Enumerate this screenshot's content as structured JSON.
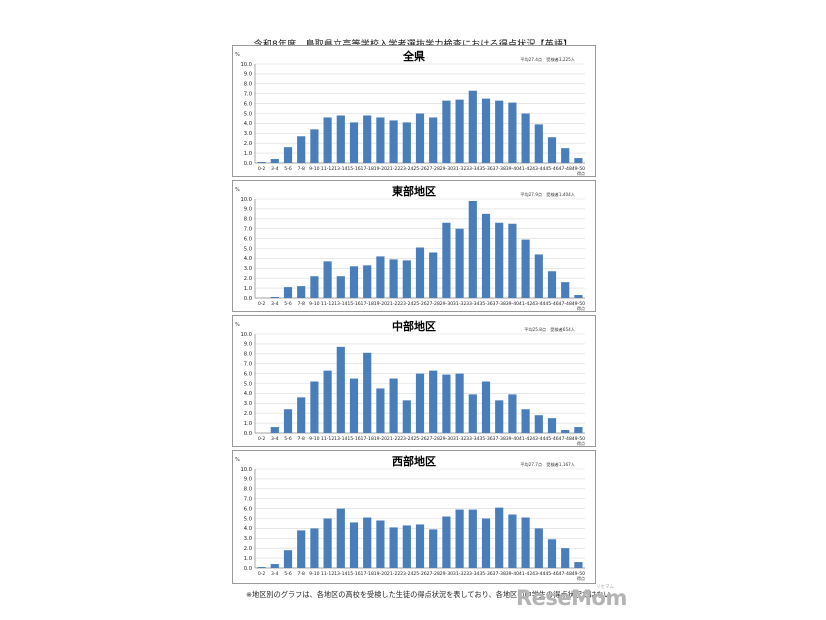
{
  "title": "令和8年度　鳥取県立高等学校入学者選抜学力検査における得点状況【英語】",
  "footnote": "※地区別のグラフは、各地区の高校を受検した生徒の得点状況を表しており、各地区の中学生の得点状況ではない",
  "logo": {
    "text": "ReseMom",
    "small": "リセマム"
  },
  "colors": {
    "bar": "#4a7ebb",
    "grid": "#d9d9d9",
    "axis": "#868686"
  },
  "chart_data": [
    {
      "type": "bar",
      "title": "全県",
      "ylabel": "%",
      "xlabel": "得点",
      "stats": "平均27.4点　受検者3,225人",
      "ylim": [
        0,
        10
      ],
      "yticks": [
        "0.0",
        "1.0",
        "2.0",
        "3.0",
        "4.0",
        "5.0",
        "6.0",
        "7.0",
        "8.0",
        "9.0",
        "10.0"
      ],
      "categories": [
        "0-2",
        "3-4",
        "5-6",
        "7-8",
        "9-10",
        "11-12",
        "13-14",
        "15-16",
        "17-18",
        "19-20",
        "21-22",
        "23-24",
        "25-26",
        "27-28",
        "29-30",
        "31-32",
        "33-34",
        "35-36",
        "37-38",
        "39-40",
        "41-42",
        "43-44",
        "45-46",
        "47-48",
        "49-50"
      ],
      "values": [
        0.1,
        0.4,
        1.6,
        2.7,
        3.4,
        4.6,
        4.8,
        4.1,
        4.8,
        4.6,
        4.3,
        4.1,
        5.0,
        4.6,
        6.3,
        6.4,
        7.3,
        6.5,
        6.3,
        6.1,
        5.0,
        3.9,
        2.6,
        1.5,
        0.5
      ]
    },
    {
      "type": "bar",
      "title": "東部地区",
      "ylabel": "%",
      "xlabel": "得点",
      "stats": "平均27.9点　受検者1,404人",
      "ylim": [
        0,
        10
      ],
      "yticks": [
        "0.0",
        "1.0",
        "2.0",
        "3.0",
        "4.0",
        "5.0",
        "6.0",
        "7.0",
        "8.0",
        "9.0",
        "10.0"
      ],
      "categories": [
        "0-2",
        "3-4",
        "5-6",
        "7-8",
        "9-10",
        "11-12",
        "13-14",
        "15-16",
        "17-18",
        "19-20",
        "21-22",
        "23-24",
        "25-26",
        "27-28",
        "29-30",
        "31-32",
        "33-34",
        "35-36",
        "37-38",
        "39-40",
        "41-42",
        "43-44",
        "45-46",
        "47-48",
        "49-50"
      ],
      "values": [
        0.0,
        0.1,
        1.1,
        1.2,
        2.2,
        3.7,
        2.2,
        3.2,
        3.3,
        4.2,
        3.9,
        3.8,
        5.1,
        4.6,
        7.6,
        7.0,
        9.8,
        8.5,
        7.6,
        7.5,
        5.9,
        4.4,
        2.7,
        1.6,
        0.3
      ]
    },
    {
      "type": "bar",
      "title": "中部地区",
      "ylabel": "%",
      "xlabel": "得点",
      "stats": "平均25.8点　受検者654人",
      "ylim": [
        0,
        10
      ],
      "yticks": [
        "0.0",
        "1.0",
        "2.0",
        "3.0",
        "4.0",
        "5.0",
        "6.0",
        "7.0",
        "8.0",
        "9.0",
        "10.0"
      ],
      "categories": [
        "0-2",
        "3-4",
        "5-6",
        "7-8",
        "9-10",
        "11-12",
        "13-14",
        "15-16",
        "17-18",
        "19-20",
        "21-22",
        "23-24",
        "25-26",
        "27-28",
        "29-30",
        "31-32",
        "33-34",
        "35-36",
        "37-38",
        "39-40",
        "41-42",
        "43-44",
        "45-46",
        "47-48",
        "49-50"
      ],
      "values": [
        0.0,
        0.6,
        2.4,
        3.6,
        5.2,
        6.3,
        8.7,
        5.5,
        8.1,
        4.5,
        5.5,
        3.3,
        6.0,
        6.3,
        5.9,
        6.0,
        3.9,
        5.2,
        3.3,
        3.9,
        2.4,
        1.8,
        1.5,
        0.3,
        0.6
      ]
    },
    {
      "type": "bar",
      "title": "西部地区",
      "ylabel": "%",
      "xlabel": "得点",
      "stats": "平均27.7点　受検者1,167人",
      "ylim": [
        0,
        10
      ],
      "yticks": [
        "0.0",
        "1.0",
        "2.0",
        "3.0",
        "4.0",
        "5.0",
        "6.0",
        "7.0",
        "8.0",
        "9.0",
        "10.0"
      ],
      "categories": [
        "0-2",
        "3-4",
        "5-6",
        "7-8",
        "9-10",
        "11-12",
        "13-14",
        "15-16",
        "17-18",
        "19-20",
        "21-22",
        "23-24",
        "25-26",
        "27-28",
        "29-30",
        "31-32",
        "33-34",
        "35-36",
        "37-38",
        "39-40",
        "41-42",
        "43-44",
        "45-46",
        "47-48",
        "49-50"
      ],
      "values": [
        0.1,
        0.4,
        1.8,
        3.8,
        4.0,
        5.0,
        6.0,
        4.6,
        5.1,
        4.8,
        4.1,
        4.3,
        4.4,
        3.9,
        5.2,
        5.9,
        5.9,
        5.0,
        6.1,
        5.4,
        5.1,
        4.0,
        2.9,
        2.0,
        0.6
      ]
    }
  ]
}
